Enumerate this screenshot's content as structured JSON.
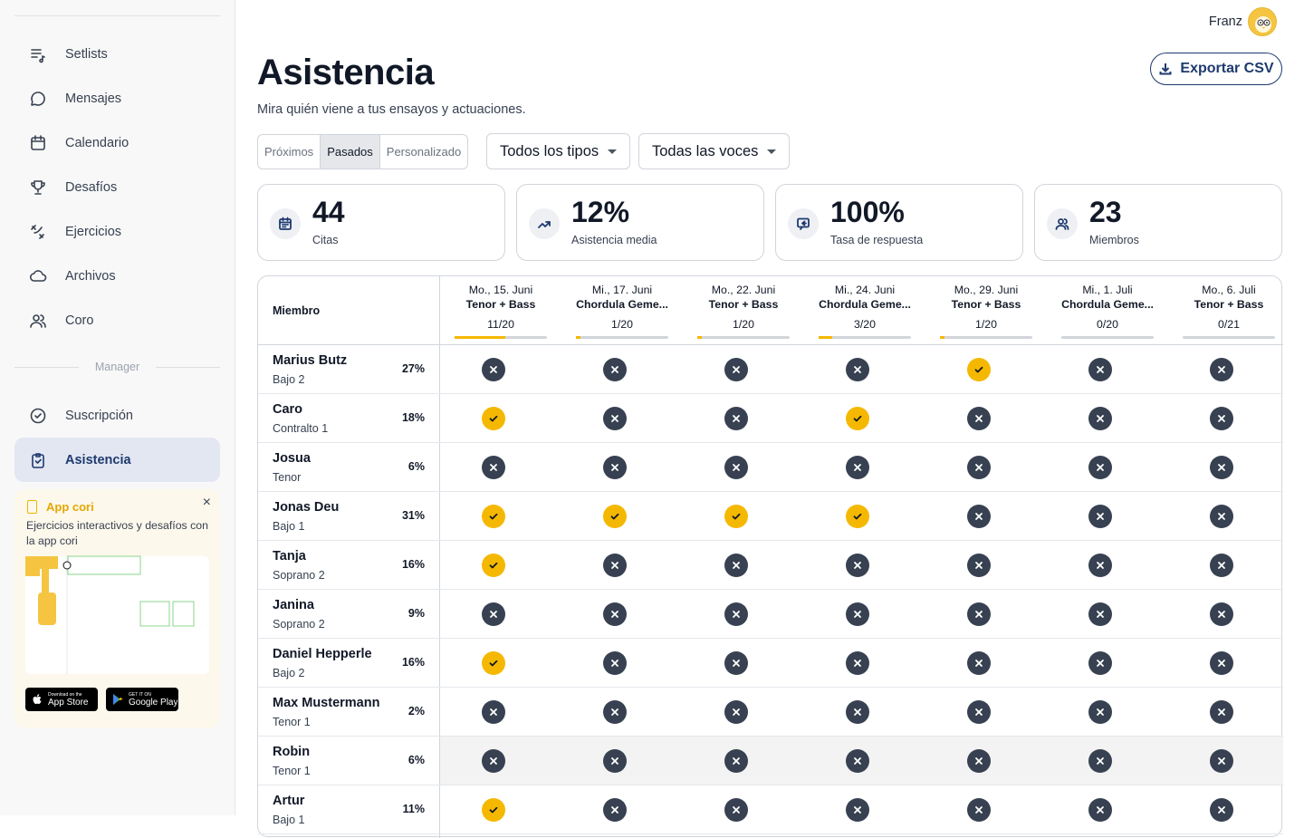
{
  "sidebar": {
    "nav": [
      {
        "label": "Setlists",
        "icon": "setlist-icon"
      },
      {
        "label": "Mensajes",
        "icon": "message-icon"
      },
      {
        "label": "Calendario",
        "icon": "calendar-icon"
      },
      {
        "label": "Desafíos",
        "icon": "trophy-icon"
      },
      {
        "label": "Ejercicios",
        "icon": "exercise-icon"
      },
      {
        "label": "Archivos",
        "icon": "cloud-icon"
      },
      {
        "label": "Coro",
        "icon": "users-icon"
      }
    ],
    "section_label": "Manager",
    "manager_nav": [
      {
        "label": "Suscripción",
        "icon": "check-circle-icon"
      },
      {
        "label": "Asistencia",
        "icon": "clipboard-icon",
        "active": true
      }
    ],
    "promo": {
      "title": "App cori",
      "text": "Ejercicios interactivos y desafíos con la app cori",
      "appstore_small": "Download on the",
      "appstore_big": "App Store",
      "googleplay_small": "GET IT ON",
      "googleplay_big": "Google Play",
      "close": "×"
    }
  },
  "header": {
    "user_name": "Franz",
    "title": "Asistencia",
    "subtitle": "Mira quién viene a tus ensayos y actuaciones.",
    "export_label": "Exportar CSV"
  },
  "filters": {
    "segments": [
      "Próximos",
      "Pasados",
      "Personalizado"
    ],
    "selected_segment": "Pasados",
    "type_dropdown": "Todos los tipos",
    "voice_dropdown": "Todas las voces"
  },
  "stats": [
    {
      "value": "44",
      "label": "Citas",
      "icon": "calendar-icon"
    },
    {
      "value": "12%",
      "label": "Asistencia media",
      "icon": "trend-up-icon"
    },
    {
      "value": "100%",
      "label": "Tasa de respuesta",
      "icon": "reply-icon"
    },
    {
      "value": "23",
      "label": "Miembros",
      "icon": "users-icon"
    }
  ],
  "table": {
    "member_header": "Miembro",
    "events": [
      {
        "date": "Mo., 15. Juni",
        "title": "Tenor + Bass",
        "count": "11/20",
        "progress": 0.55
      },
      {
        "date": "Mi., 17. Juni",
        "title": "Chordula Geme...",
        "count": "1/20",
        "progress": 0.05
      },
      {
        "date": "Mo., 22. Juni",
        "title": "Tenor + Bass",
        "count": "1/20",
        "progress": 0.05
      },
      {
        "date": "Mi., 24. Juni",
        "title": "Chordula Geme...",
        "count": "3/20",
        "progress": 0.15
      },
      {
        "date": "Mo., 29. Juni",
        "title": "Tenor + Bass",
        "count": "1/20",
        "progress": 0.05
      },
      {
        "date": "Mi., 1. Juli",
        "title": "Chordula Geme...",
        "count": "0/20",
        "progress": 0
      },
      {
        "date": "Mo., 6. Juli",
        "title": "Tenor + Bass",
        "count": "0/21",
        "progress": 0
      }
    ],
    "rows": [
      {
        "name": "Marius Butz",
        "voice": "Bajo 2",
        "pct": "27%",
        "att": [
          0,
          0,
          0,
          0,
          1,
          0,
          0
        ]
      },
      {
        "name": "Caro",
        "voice": "Contralto 1",
        "pct": "18%",
        "att": [
          1,
          0,
          0,
          1,
          0,
          0,
          0
        ]
      },
      {
        "name": "Josua",
        "voice": "Tenor",
        "pct": "6%",
        "att": [
          0,
          0,
          0,
          0,
          0,
          0,
          0
        ]
      },
      {
        "name": "Jonas Deu",
        "voice": "Bajo 1",
        "pct": "31%",
        "att": [
          1,
          1,
          1,
          1,
          0,
          0,
          0
        ]
      },
      {
        "name": "Tanja",
        "voice": "Soprano 2",
        "pct": "16%",
        "att": [
          1,
          0,
          0,
          0,
          0,
          0,
          0
        ]
      },
      {
        "name": "Janina",
        "voice": "Soprano 2",
        "pct": "9%",
        "att": [
          0,
          0,
          0,
          0,
          0,
          0,
          0
        ]
      },
      {
        "name": "Daniel Hepperle",
        "voice": "Bajo 2",
        "pct": "16%",
        "att": [
          1,
          0,
          0,
          0,
          0,
          0,
          0
        ]
      },
      {
        "name": "Max Mustermann",
        "voice": "Tenor 1",
        "pct": "2%",
        "att": [
          0,
          0,
          0,
          0,
          0,
          0,
          0
        ]
      },
      {
        "name": "Robin",
        "voice": "Tenor 1",
        "pct": "6%",
        "att": [
          0,
          0,
          0,
          0,
          0,
          0,
          0
        ],
        "highlight": true
      },
      {
        "name": "Artur",
        "voice": "Bajo 1",
        "pct": "11%",
        "att": [
          1,
          0,
          0,
          0,
          0,
          0,
          0
        ]
      }
    ]
  },
  "colors": {
    "accent": "#1e3a6e",
    "yes": "#f5b800",
    "no": "#374151"
  }
}
